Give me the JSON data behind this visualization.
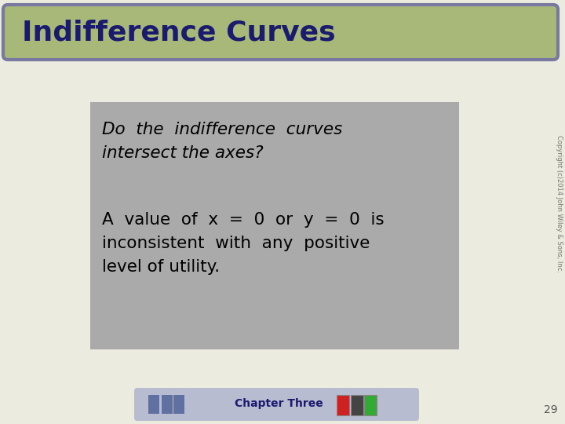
{
  "title": "Indifference Curves",
  "title_color": "#1a1a6e",
  "title_bg_color": "#a8b878",
  "title_border_color": "#7878a0",
  "slide_bg_color": "#ebebdf",
  "content_box_color": "#aaaaaa",
  "question_text_line1": "Do  the  indifference  curves",
  "question_text_line2": "intersect the axes?",
  "answer_text_line1": "A  value  of  x  =  0  or  y  =  0  is",
  "answer_text_line2": "inconsistent  with  any  positive",
  "answer_text_line3": "level of utility.",
  "footer_text": "Chapter Three",
  "footer_bg_color": "#b8bcd0",
  "page_number": "29",
  "copyright_text": "Copyright (c)2014 John Wiley & Sons, Inc.",
  "nav_btn_color": "#6070a0",
  "icon_colors": [
    "#cc2222",
    "#444444",
    "#33aa33"
  ]
}
